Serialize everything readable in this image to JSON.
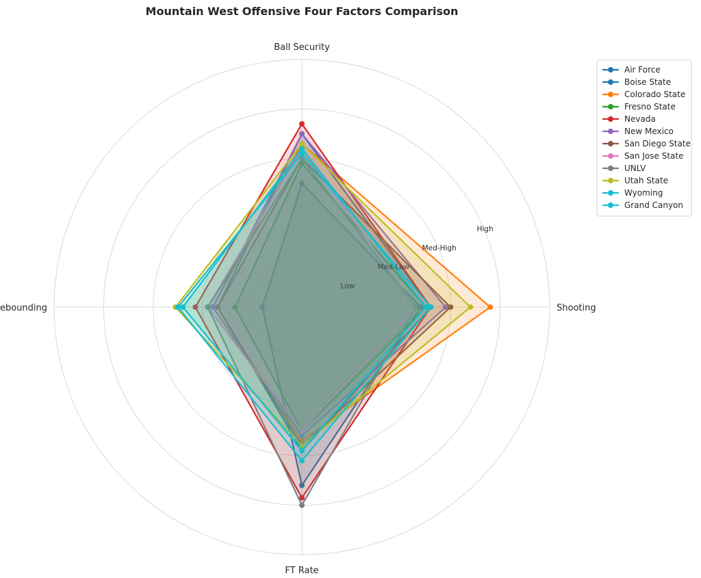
{
  "chart_data": {
    "type": "radar",
    "title": "Mountain West Offensive Four Factors Comparison",
    "axes": [
      "Shooting",
      "Ball Security",
      "Off Rebounding",
      "FT Rate"
    ],
    "tick_labels": [
      "Low",
      "Med-Low",
      "Med-High",
      "High"
    ],
    "r_range": [
      0,
      5
    ],
    "grid": true,
    "legend_position": "upper-right-outside",
    "series": [
      {
        "name": "Air Force",
        "color": "#1f77b4",
        "values": [
          2.4,
          2.5,
          0.8,
          3.6
        ]
      },
      {
        "name": "Boise State",
        "color": "#1f77b4",
        "values": [
          2.6,
          3.5,
          1.7,
          2.9
        ]
      },
      {
        "name": "Colorado State",
        "color": "#ff7f0e",
        "values": [
          3.8,
          3.3,
          1.8,
          2.7
        ]
      },
      {
        "name": "Fresno State",
        "color": "#2ca02c",
        "values": [
          2.5,
          2.9,
          1.35,
          2.5
        ]
      },
      {
        "name": "Nevada",
        "color": "#d62728",
        "values": [
          2.6,
          3.7,
          2.15,
          3.85
        ]
      },
      {
        "name": "New Mexico",
        "color": "#9467bd",
        "values": [
          2.9,
          3.5,
          1.8,
          2.6
        ]
      },
      {
        "name": "San Diego State",
        "color": "#8c564b",
        "values": [
          3.0,
          3.0,
          1.7,
          2.8
        ]
      },
      {
        "name": "San Jose State",
        "color": "#e377c2",
        "values": [
          2.3,
          3.2,
          1.9,
          2.5
        ]
      },
      {
        "name": "UNLV",
        "color": "#7f7f7f",
        "values": [
          2.3,
          3.0,
          1.9,
          4.0
        ]
      },
      {
        "name": "Utah State",
        "color": "#bcbd22",
        "values": [
          3.4,
          3.3,
          2.55,
          2.8
        ]
      },
      {
        "name": "Wyoming",
        "color": "#17becf",
        "values": [
          2.5,
          3.2,
          2.4,
          2.9
        ]
      },
      {
        "name": "Grand Canyon",
        "color": "#17becf",
        "values": [
          2.6,
          3.1,
          2.5,
          3.1
        ]
      }
    ]
  }
}
